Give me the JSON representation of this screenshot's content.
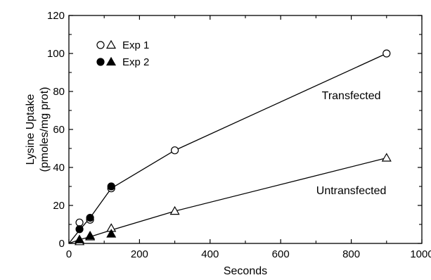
{
  "chart_data": {
    "type": "scatter",
    "title": "",
    "xlabel": "Seconds",
    "ylabel_lines": [
      "Lysine Uptake",
      "(pmoles/mg prot)"
    ],
    "xlim": [
      0,
      1000
    ],
    "ylim": [
      0,
      120
    ],
    "x_ticks": [
      0,
      200,
      400,
      600,
      800,
      1000
    ],
    "y_ticks": [
      0,
      20,
      40,
      60,
      80,
      100,
      120
    ],
    "grid": false,
    "legend": {
      "placement": "top-left",
      "entries": [
        {
          "label": "Exp 1",
          "markers": [
            "circle-open",
            "triangle-open"
          ]
        },
        {
          "label": "Exp 2",
          "markers": [
            "circle-filled",
            "triangle-filled"
          ]
        }
      ]
    },
    "annotations": [
      {
        "text": "Transfected",
        "x": 800,
        "y": 76
      },
      {
        "text": "Untransfected",
        "x": 800,
        "y": 26
      }
    ],
    "fit_lines": [
      {
        "name": "Transfected",
        "points": [
          [
            0,
            0
          ],
          [
            30,
            7
          ],
          [
            60,
            13.5
          ],
          [
            120,
            29
          ],
          [
            300,
            49
          ],
          [
            900,
            100
          ]
        ]
      },
      {
        "name": "Untransfected",
        "points": [
          [
            0,
            0
          ],
          [
            30,
            2
          ],
          [
            60,
            3.5
          ],
          [
            120,
            7
          ],
          [
            300,
            17
          ],
          [
            900,
            45
          ]
        ]
      }
    ],
    "series": [
      {
        "group": "Transfected",
        "experiment": "Exp 1",
        "marker": "circle-open",
        "x": [
          30,
          60,
          120,
          300,
          900
        ],
        "y": [
          11,
          12.5,
          29,
          49,
          100
        ]
      },
      {
        "group": "Transfected",
        "experiment": "Exp 2",
        "marker": "circle-filled",
        "x": [
          30,
          60,
          120
        ],
        "y": [
          7.5,
          13.5,
          30
        ]
      },
      {
        "group": "Untransfected",
        "experiment": "Exp 1",
        "marker": "triangle-open",
        "x": [
          30,
          60,
          120,
          300,
          900
        ],
        "y": [
          1,
          3.5,
          8,
          17,
          45
        ]
      },
      {
        "group": "Untransfected",
        "experiment": "Exp 2",
        "marker": "triangle-filled",
        "x": [
          30,
          60,
          120
        ],
        "y": [
          2,
          4,
          5
        ]
      }
    ]
  }
}
